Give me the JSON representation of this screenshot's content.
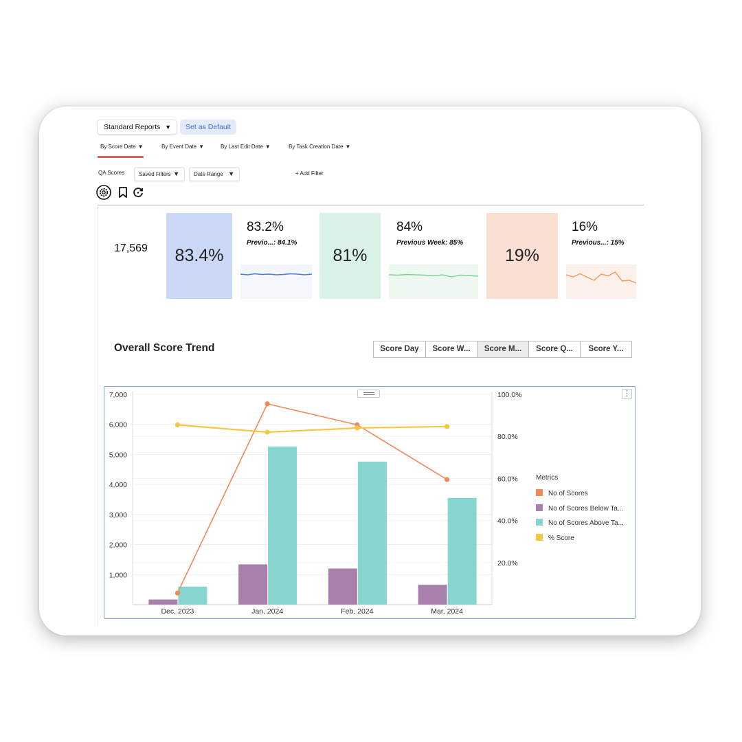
{
  "toolbar": {
    "report_select": "Standard Reports",
    "set_default": "Set as Default"
  },
  "date_tabs": [
    "By Score Date",
    "By Event Date",
    "By Last Edit Date",
    "By Task Creation Date"
  ],
  "filters": {
    "label": "QA Scores",
    "saved_filters": "Saved Filters",
    "date_range": "Date Range",
    "add_filter": "+ Add Filter"
  },
  "icons": [
    "settings-icon",
    "bookmark-icon",
    "refresh-icon"
  ],
  "kpis": {
    "total_count": "17,569",
    "tiles": [
      {
        "big": "83.4%",
        "value": "83.2%",
        "prev": "Previo...: 84.1%",
        "tile_color": "#cbd7f6",
        "spark_color": "#4c7ad8",
        "spark_bg": "#f4f6fb",
        "spark": [
          0.28,
          0.3,
          0.27,
          0.29,
          0.28,
          0.3,
          0.29,
          0.27,
          0.28,
          0.3,
          0.28
        ]
      },
      {
        "big": "81%",
        "value": "84%",
        "prev": "Previous Week: 85%",
        "tile_color": "#d9f2e5",
        "spark_color": "#7ecf9a",
        "spark_bg": "#edf8f1",
        "spark": [
          0.3,
          0.31,
          0.29,
          0.3,
          0.31,
          0.33,
          0.3,
          0.36,
          0.31,
          0.32,
          0.34
        ]
      },
      {
        "big": "19%",
        "value": "16%",
        "prev": "Previous...: 15%",
        "tile_color": "#f9e0d2",
        "spark_color": "#f0995a",
        "spark_bg": "#fcf0ea",
        "spark": [
          0.3,
          0.36,
          0.27,
          0.37,
          0.46,
          0.28,
          0.33,
          0.22,
          0.48,
          0.46,
          0.54
        ]
      }
    ]
  },
  "trend": {
    "title": "Overall Score Trend",
    "segments": [
      "Score Day",
      "Score W...",
      "Score M...",
      "Score Q...",
      "Score Y..."
    ],
    "active_segment": 2
  },
  "chart_data": {
    "type": "bar",
    "categories": [
      "Dec, 2023",
      "Jan, 2024",
      "Feb, 2024",
      "Mar, 2024"
    ],
    "series": [
      {
        "name": "No of Scores",
        "kind": "line",
        "axis": "right",
        "color": "#f0895a",
        "values": [
          5.5,
          95.5,
          85.5,
          59.5
        ]
      },
      {
        "name": "No of Scores Below Ta...",
        "kind": "bar",
        "axis": "left",
        "color": "#a880ab",
        "values": [
          170,
          1340,
          1200,
          660
        ]
      },
      {
        "name": "No of Scores Above Ta...",
        "kind": "bar",
        "axis": "left",
        "color": "#86d6cf",
        "values": [
          600,
          5260,
          4760,
          3550
        ]
      },
      {
        "name": "% Score",
        "kind": "line",
        "axis": "right",
        "color": "#f6c744",
        "values": [
          85.5,
          82,
          84,
          84.7
        ]
      }
    ],
    "y_left": {
      "min": 0,
      "max": 7000,
      "ticks": [
        "1,000",
        "2,000",
        "3,000",
        "4,000",
        "5,000",
        "6,000",
        "7,000"
      ]
    },
    "y_right": {
      "min": 0,
      "max": 100,
      "ticks": [
        "20.0%",
        "40.0%",
        "60.0%",
        "80.0%",
        "100.0%"
      ]
    },
    "legend_title": "Metrics",
    "legend_position": "right",
    "grid": true
  }
}
